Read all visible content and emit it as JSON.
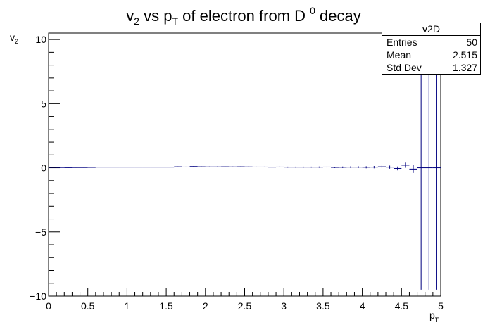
{
  "chart_data": {
    "type": "histogram",
    "title": "v2 vs pT of electron from D 0 decay",
    "title_parts": {
      "v": "v",
      "v_sub": "2",
      "vs": " vs p",
      "p_sub": "T",
      "rest": " of electron from D ",
      "d_sup": "0",
      "end": " decay"
    },
    "xlabel": {
      "base": "p",
      "sub": "T"
    },
    "ylabel": {
      "base": "v",
      "sub": "2"
    },
    "xlim": [
      0,
      5
    ],
    "ylim": [
      -10,
      10.5
    ],
    "x_ticks": [
      "0",
      "0.5",
      "1",
      "1.5",
      "2",
      "2.5",
      "3",
      "3.5",
      "4",
      "4.5",
      "5"
    ],
    "y_ticks": [
      {
        "value": -10,
        "label": "−10"
      },
      {
        "value": -5,
        "label": "−5"
      },
      {
        "value": 0,
        "label": "0"
      },
      {
        "value": 5,
        "label": "5"
      },
      {
        "value": 10,
        "label": "10"
      }
    ],
    "bin_width": 0.1,
    "bin_centers": [
      0.05,
      0.15,
      0.25,
      0.35,
      0.45,
      0.55,
      0.65,
      0.75,
      0.85,
      0.95,
      1.05,
      1.15,
      1.25,
      1.35,
      1.45,
      1.55,
      1.65,
      1.75,
      1.85,
      1.95,
      2.05,
      2.15,
      2.25,
      2.35,
      2.45,
      2.55,
      2.65,
      2.75,
      2.85,
      2.95,
      3.05,
      3.15,
      3.25,
      3.35,
      3.45,
      3.55,
      3.65,
      3.75,
      3.85,
      3.95,
      4.05,
      4.15,
      4.25,
      4.35,
      4.45,
      4.55,
      4.65,
      4.75,
      4.85,
      4.95
    ],
    "values": [
      0.03,
      0.02,
      0.01,
      0.02,
      0.02,
      0.03,
      0.05,
      0.05,
      0.05,
      0.05,
      0.05,
      0.05,
      0.05,
      0.05,
      0.05,
      0.05,
      0.08,
      0.06,
      0.1,
      0.08,
      0.07,
      0.07,
      0.08,
      0.07,
      0.08,
      0.07,
      0.06,
      0.06,
      0.05,
      0.06,
      0.05,
      0.05,
      0.05,
      0.05,
      0.05,
      0.06,
      0.03,
      0.04,
      0.05,
      0.05,
      0.04,
      0.05,
      0.08,
      0.05,
      -0.05,
      0.2,
      -0.1,
      0.0,
      0.0,
      0.0
    ],
    "errors": [
      0.02,
      0.02,
      0.02,
      0.02,
      0.02,
      0.02,
      0.02,
      0.02,
      0.02,
      0.02,
      0.02,
      0.02,
      0.02,
      0.02,
      0.02,
      0.02,
      0.03,
      0.03,
      0.03,
      0.03,
      0.03,
      0.03,
      0.03,
      0.03,
      0.03,
      0.03,
      0.03,
      0.03,
      0.03,
      0.03,
      0.04,
      0.04,
      0.04,
      0.04,
      0.05,
      0.05,
      0.05,
      0.06,
      0.06,
      0.07,
      0.08,
      0.09,
      0.1,
      0.12,
      0.15,
      0.2,
      0.3,
      9.5,
      9.5,
      9.5
    ],
    "line_color": "#000080",
    "stats": {
      "title": "v2D",
      "entries_label": "Entries",
      "entries": "50",
      "mean_label": "Mean",
      "mean": "2.515",
      "std_label": "Std Dev",
      "std": "1.327"
    }
  }
}
